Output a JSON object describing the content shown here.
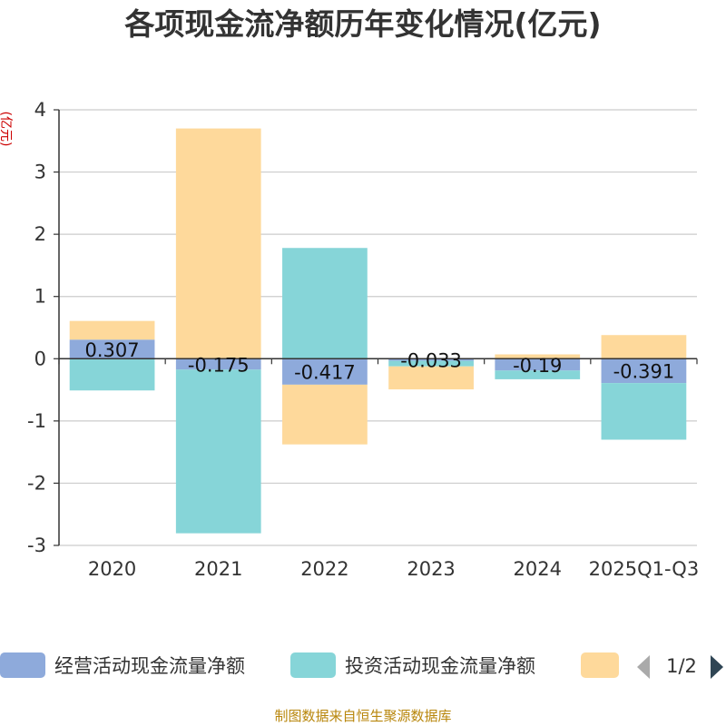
{
  "chart_data": {
    "type": "bar",
    "stacked": true,
    "title": "各项现金流净额历年变化情况(亿元)",
    "ylabel": "(亿元)",
    "xlabel": "",
    "categories": [
      "2020",
      "2021",
      "2022",
      "2023",
      "2024",
      "2025Q1-Q3"
    ],
    "ylim": [
      -3,
      4
    ],
    "yticks": [
      -3,
      -2,
      -1,
      0,
      1,
      2,
      3,
      4
    ],
    "series": [
      {
        "name": "经营活动现金流量净额",
        "color": "#8eaadb",
        "values": [
          0.307,
          -0.175,
          -0.417,
          -0.033,
          -0.19,
          -0.391
        ],
        "labels": [
          "0.307",
          "-0.175",
          "-0.417",
          "-0.033",
          "-0.19",
          "-0.391"
        ]
      },
      {
        "name": "投资活动现金流量净额",
        "color": "#86d5d8",
        "values": [
          -0.51,
          -2.63,
          1.78,
          -0.09,
          -0.14,
          -0.91
        ]
      },
      {
        "name": "",
        "color": "#fed99b",
        "values": [
          0.3,
          3.7,
          -0.96,
          -0.37,
          0.07,
          0.38
        ]
      }
    ],
    "legend": {
      "position": "bottom",
      "page": "1/2"
    },
    "source": "制图数据来自恒生聚源数据库"
  }
}
